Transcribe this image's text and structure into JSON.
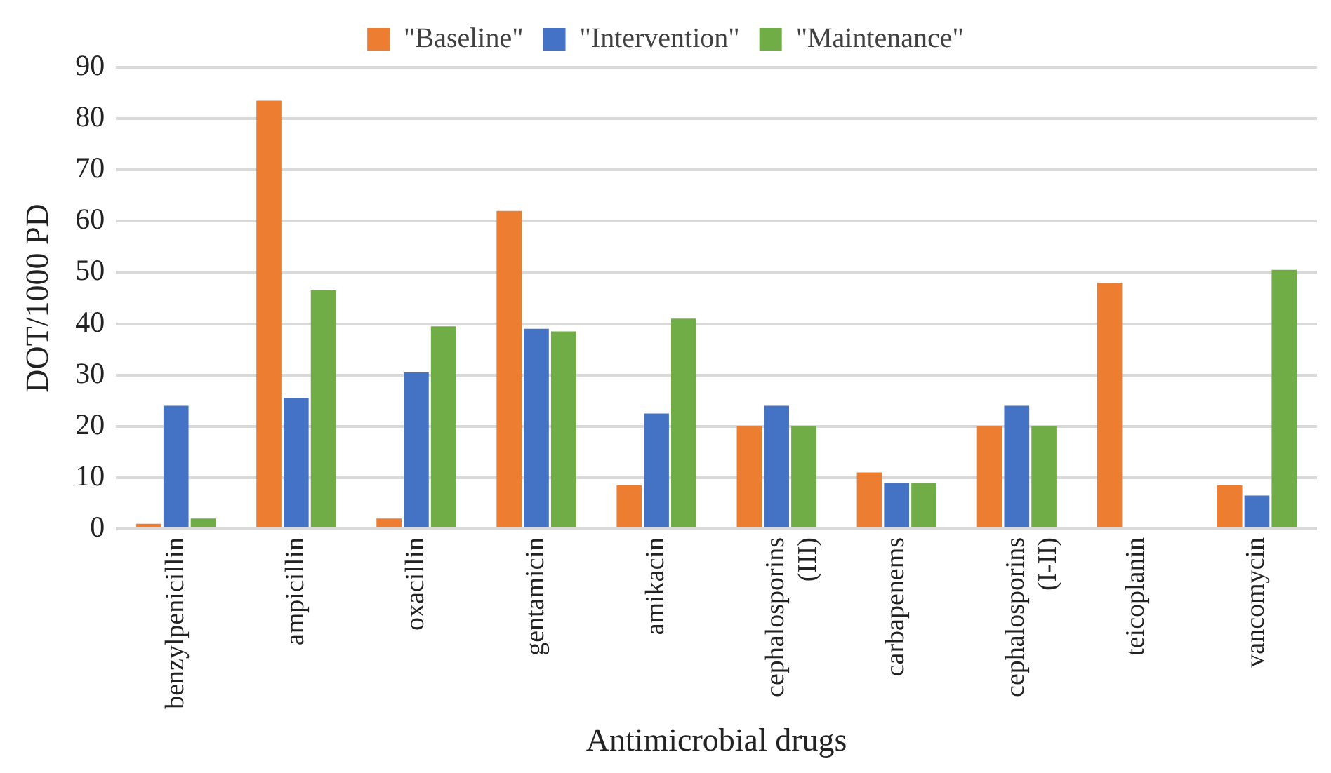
{
  "chart_data": {
    "type": "bar",
    "xlabel": "Antimicrobial drugs",
    "ylabel": "DOT/1000 PD",
    "categories": [
      "benzylpenicillin",
      "ampicillin",
      "oxacillin",
      "gentamicin",
      "amikacin",
      "cephalosporins (III)",
      "carbapenems",
      "cephalosporins (I-II)",
      "teicoplanin",
      "vancomycin"
    ],
    "series": [
      {
        "name": "\"Baseline\"",
        "color": "#ed7d31",
        "values": [
          1,
          83.5,
          2,
          62,
          8.5,
          20,
          11,
          20,
          48,
          8.5
        ]
      },
      {
        "name": "\"Intervention\"",
        "color": "#4472c4",
        "values": [
          24,
          25.5,
          30.5,
          39,
          22.5,
          24,
          9,
          24,
          0,
          6.5
        ]
      },
      {
        "name": "\"Maintenance\"",
        "color": "#70ad47",
        "values": [
          2,
          46.5,
          39.5,
          38.5,
          41,
          20,
          9,
          20,
          0,
          50.5
        ]
      }
    ],
    "ylim": [
      0,
      90
    ],
    "yticks": [
      0,
      10,
      20,
      30,
      40,
      50,
      60,
      70,
      80,
      90
    ],
    "grid": "y",
    "legend": "top"
  }
}
